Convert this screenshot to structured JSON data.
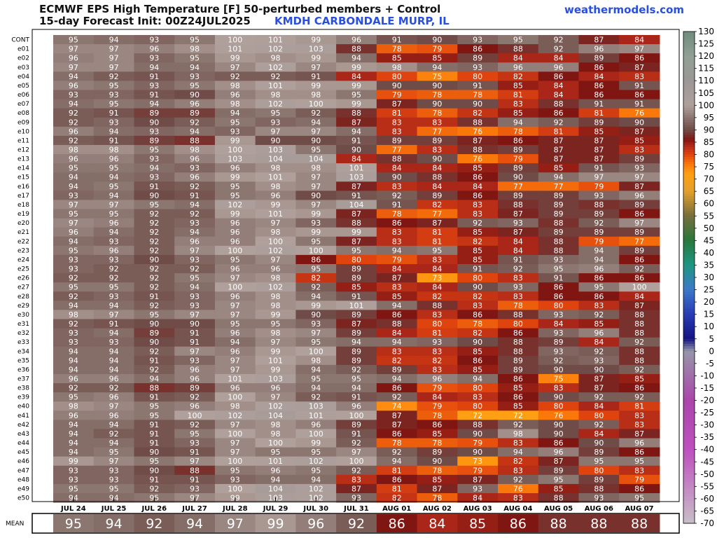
{
  "header": {
    "title_line1": "ECMWF EPS High Temperature [F]  50-perturbed members + Control",
    "title_line2": "15-day Forecast Init: 00Z24JUL2025",
    "station": "KMDH CARBONDALE MURP, IL",
    "site": "weathermodels.com"
  },
  "chart_data": {
    "type": "heatmap",
    "title": "ECMWF EPS High Temperature [F]  50-perturbed members + Control",
    "subtitle": "15-day Forecast Init: 00Z24JUL2025",
    "x": [
      "JUL 24",
      "JUL 25",
      "JUL 26",
      "JUL 27",
      "JUL 28",
      "JUL 29",
      "JUL 30",
      "JUL 31",
      "AUG 01",
      "AUG 02",
      "AUG 03",
      "AUG 04",
      "AUG 05",
      "AUG 06",
      "AUG 07"
    ],
    "members": [
      "CONT",
      "e01",
      "e02",
      "e03",
      "e04",
      "e05",
      "e06",
      "e07",
      "e08",
      "e09",
      "e10",
      "e11",
      "e12",
      "e13",
      "e14",
      "e15",
      "e16",
      "e17",
      "e18",
      "e19",
      "e20",
      "e21",
      "e22",
      "e23",
      "e24",
      "e25",
      "e26",
      "e27",
      "e28",
      "e29",
      "e30",
      "e31",
      "e32",
      "e33",
      "e34",
      "e35",
      "e36",
      "e37",
      "e38",
      "e39",
      "e40",
      "e41",
      "e42",
      "e43",
      "e44",
      "e45",
      "e46",
      "e47",
      "e48",
      "e49",
      "e50"
    ],
    "values": [
      [
        95,
        94,
        93,
        95,
        100,
        101,
        99,
        96,
        91,
        90,
        93,
        95,
        92,
        87,
        84
      ],
      [
        97,
        97,
        96,
        98,
        101,
        102,
        103,
        88,
        78,
        79,
        86,
        88,
        92,
        96,
        97
      ],
      [
        96,
        97,
        93,
        95,
        99,
        98,
        99,
        94,
        85,
        85,
        89,
        84,
        84,
        89,
        86
      ],
      [
        97,
        97,
        94,
        94,
        97,
        102,
        97,
        99,
        98,
        94,
        93,
        96,
        96,
        86,
        87
      ],
      [
        94,
        92,
        91,
        93,
        92,
        92,
        91,
        84,
        80,
        75,
        80,
        82,
        86,
        84,
        83
      ],
      [
        96,
        95,
        93,
        95,
        98,
        101,
        99,
        99,
        90,
        90,
        91,
        85,
        84,
        86,
        91
      ],
      [
        93,
        93,
        91,
        90,
        96,
        98,
        98,
        95,
        79,
        78,
        78,
        81,
        84,
        86,
        86
      ],
      [
        94,
        95,
        94,
        96,
        98,
        102,
        100,
        99,
        87,
        90,
        90,
        83,
        88,
        91,
        91
      ],
      [
        92,
        91,
        89,
        89,
        94,
        95,
        92,
        88,
        81,
        78,
        82,
        85,
        86,
        81,
        76
      ],
      [
        92,
        93,
        90,
        92,
        95,
        93,
        94,
        87,
        83,
        83,
        88,
        94,
        92,
        89,
        90
      ],
      [
        96,
        94,
        93,
        94,
        93,
        97,
        97,
        94,
        83,
        77,
        76,
        78,
        81,
        85,
        87
      ],
      [
        92,
        91,
        89,
        88,
        99,
        90,
        90,
        91,
        89,
        89,
        87,
        86,
        87,
        87,
        85
      ],
      [
        98,
        98,
        95,
        98,
        100,
        103,
        95,
        90,
        77,
        83,
        88,
        89,
        87,
        87,
        83
      ],
      [
        96,
        96,
        93,
        96,
        103,
        104,
        104,
        84,
        88,
        90,
        76,
        79,
        87,
        87,
        89
      ],
      [
        95,
        95,
        94,
        93,
        96,
        98,
        98,
        101,
        84,
        84,
        85,
        89,
        85,
        91,
        93
      ],
      [
        94,
        94,
        93,
        96,
        99,
        101,
        97,
        103,
        90,
        88,
        86,
        90,
        94,
        97,
        97
      ],
      [
        94,
        95,
        91,
        92,
        95,
        98,
        97,
        87,
        83,
        84,
        84,
        77,
        77,
        79,
        87
      ],
      [
        93,
        94,
        90,
        91,
        95,
        96,
        90,
        91,
        92,
        89,
        86,
        89,
        89,
        93,
        96
      ],
      [
        97,
        97,
        95,
        94,
        102,
        99,
        97,
        104,
        91,
        82,
        83,
        88,
        89,
        88,
        89
      ],
      [
        95,
        95,
        92,
        92,
        99,
        101,
        99,
        87,
        78,
        77,
        83,
        87,
        89,
        89,
        86
      ],
      [
        97,
        96,
        92,
        93,
        96,
        97,
        93,
        88,
        86,
        87,
        92,
        93,
        88,
        92,
        97
      ],
      [
        96,
        94,
        92,
        94,
        96,
        98,
        99,
        99,
        83,
        81,
        85,
        87,
        89,
        89,
        89
      ],
      [
        94,
        93,
        92,
        96,
        96,
        100,
        95,
        87,
        83,
        81,
        82,
        84,
        88,
        79,
        77
      ],
      [
        95,
        96,
        92,
        97,
        100,
        102,
        100,
        95,
        94,
        95,
        85,
        84,
        88,
        94,
        89
      ],
      [
        93,
        93,
        90,
        93,
        95,
        97,
        86,
        80,
        79,
        83,
        85,
        91,
        93,
        94,
        86
      ],
      [
        93,
        92,
        92,
        92,
        96,
        96,
        95,
        89,
        84,
        84,
        91,
        92,
        95,
        96,
        92
      ],
      [
        92,
        92,
        92,
        95,
        97,
        98,
        82,
        89,
        87,
        73,
        80,
        83,
        91,
        86,
        86
      ],
      [
        95,
        95,
        92,
        94,
        100,
        102,
        92,
        85,
        83,
        84,
        90,
        93,
        86,
        95,
        100
      ],
      [
        92,
        93,
        91,
        93,
        96,
        98,
        94,
        91,
        85,
        82,
        82,
        83,
        86,
        86,
        84
      ],
      [
        94,
        94,
        92,
        93,
        97,
        98,
        99,
        101,
        94,
        88,
        83,
        78,
        80,
        83,
        87
      ],
      [
        98,
        97,
        95,
        97,
        97,
        99,
        90,
        89,
        86,
        83,
        86,
        88,
        93,
        92,
        88
      ],
      [
        92,
        91,
        90,
        90,
        95,
        95,
        93,
        87,
        88,
        80,
        78,
        80,
        84,
        85,
        88
      ],
      [
        93,
        94,
        89,
        91,
        96,
        98,
        97,
        89,
        84,
        81,
        82,
        86,
        93,
        96,
        88
      ],
      [
        93,
        93,
        90,
        91,
        94,
        97,
        95,
        94,
        94,
        93,
        90,
        88,
        89,
        84,
        92
      ],
      [
        94,
        94,
        92,
        97,
        96,
        99,
        100,
        89,
        83,
        83,
        85,
        88,
        93,
        92,
        88
      ],
      [
        94,
        94,
        91,
        93,
        97,
        101,
        98,
        89,
        82,
        82,
        86,
        89,
        92,
        93,
        88
      ],
      [
        94,
        94,
        92,
        96,
        97,
        99,
        94,
        92,
        89,
        83,
        85,
        89,
        90,
        90,
        92
      ],
      [
        96,
        96,
        94,
        96,
        101,
        103,
        95,
        95,
        94,
        96,
        94,
        86,
        75,
        87,
        85
      ],
      [
        92,
        92,
        88,
        89,
        96,
        96,
        94,
        94,
        86,
        79,
        80,
        85,
        83,
        87,
        86
      ],
      [
        95,
        96,
        91,
        92,
        100,
        97,
        92,
        91,
        92,
        84,
        83,
        86,
        90,
        92,
        92
      ],
      [
        98,
        97,
        95,
        96,
        98,
        102,
        103,
        96,
        74,
        79,
        80,
        85,
        80,
        84,
        81
      ],
      [
        96,
        96,
        95,
        100,
        102,
        104,
        101,
        100,
        87,
        78,
        72,
        72,
        76,
        80,
        83
      ],
      [
        94,
        94,
        91,
        92,
        97,
        98,
        96,
        89,
        87,
        86,
        88,
        92,
        90,
        92,
        83
      ],
      [
        94,
        92,
        91,
        95,
        100,
        98,
        100,
        91,
        86,
        85,
        90,
        98,
        90,
        84,
        87
      ],
      [
        94,
        94,
        91,
        93,
        97,
        100,
        99,
        92,
        78,
        78,
        79,
        83,
        86,
        90,
        96
      ],
      [
        94,
        95,
        90,
        91,
        97,
        95,
        95,
        97,
        92,
        89,
        90,
        94,
        96,
        89,
        86
      ],
      [
        99,
        97,
        95,
        97,
        100,
        101,
        102,
        100,
        94,
        90,
        73,
        82,
        87,
        95,
        95
      ],
      [
        93,
        93,
        90,
        88,
        95,
        96,
        95,
        92,
        81,
        78,
        79,
        83,
        89,
        80,
        83
      ],
      [
        93,
        93,
        91,
        91,
        93,
        94,
        94,
        83,
        86,
        85,
        87,
        92,
        95,
        89,
        79
      ],
      [
        95,
        95,
        92,
        93,
        100,
        104,
        102,
        87,
        81,
        87,
        93,
        76,
        85,
        88,
        86
      ],
      [
        94,
        94,
        95,
        97,
        99,
        103,
        102,
        93,
        82,
        78,
        84,
        83,
        88,
        93,
        95
      ]
    ],
    "mean": [
      95,
      94,
      92,
      94,
      97,
      99,
      96,
      92,
      86,
      84,
      85,
      86,
      88,
      88,
      88
    ],
    "mean_label": "MEAN",
    "colorbar": {
      "ticks": [
        130,
        125,
        120,
        115,
        110,
        105,
        100,
        95,
        90,
        85,
        80,
        75,
        70,
        65,
        60,
        55,
        50,
        45,
        40,
        35,
        30,
        25,
        20,
        15,
        10,
        5,
        0,
        -5,
        -10,
        -15,
        -20,
        -25,
        -30,
        -35,
        -40,
        -45,
        -50,
        -55,
        -60,
        -65,
        -70
      ],
      "range": [
        -70,
        130
      ]
    }
  }
}
